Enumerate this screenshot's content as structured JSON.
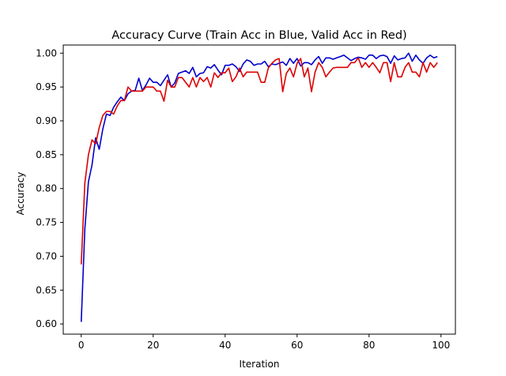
{
  "chart_data": {
    "type": "line",
    "title": "Accuracy Curve (Train Acc in Blue, Valid Acc in Red)",
    "xlabel": "Iteration",
    "ylabel": "Accuracy",
    "xlim": [
      -5,
      104
    ],
    "ylim": [
      0.585,
      1.012
    ],
    "grid": false,
    "legend": "none",
    "xticks": [
      0,
      20,
      40,
      60,
      80,
      100
    ],
    "xtick_labels": [
      "0",
      "20",
      "40",
      "60",
      "80",
      "100"
    ],
    "yticks": [
      0.6,
      0.65,
      0.7,
      0.75,
      0.8,
      0.85,
      0.9,
      0.95,
      1.0
    ],
    "ytick_labels": [
      "0.60",
      "0.65",
      "0.70",
      "0.75",
      "0.80",
      "0.85",
      "0.90",
      "0.95",
      "1.00"
    ],
    "x": [
      0,
      1,
      2,
      3,
      4,
      5,
      6,
      7,
      8,
      9,
      10,
      11,
      12,
      13,
      14,
      15,
      16,
      17,
      18,
      19,
      20,
      21,
      22,
      23,
      24,
      25,
      26,
      27,
      28,
      29,
      30,
      31,
      32,
      33,
      34,
      35,
      36,
      37,
      38,
      39,
      40,
      41,
      42,
      43,
      44,
      45,
      46,
      47,
      48,
      49,
      50,
      51,
      52,
      53,
      54,
      55,
      56,
      57,
      58,
      59,
      60,
      61,
      62,
      63,
      64,
      65,
      66,
      67,
      68,
      69,
      70,
      71,
      72,
      73,
      74,
      75,
      76,
      77,
      78,
      79,
      80,
      81,
      82,
      83,
      84,
      85,
      86,
      87,
      88,
      89,
      90,
      91,
      92,
      93,
      94,
      95,
      96,
      97,
      98,
      99
    ],
    "series": [
      {
        "color": "#0000cc",
        "values": [
          0.603,
          0.74,
          0.81,
          0.835,
          0.875,
          0.858,
          0.888,
          0.91,
          0.908,
          0.92,
          0.928,
          0.935,
          0.93,
          0.94,
          0.944,
          0.945,
          0.963,
          0.945,
          0.953,
          0.963,
          0.957,
          0.957,
          0.952,
          0.96,
          0.968,
          0.95,
          0.956,
          0.97,
          0.972,
          0.974,
          0.97,
          0.979,
          0.965,
          0.97,
          0.971,
          0.98,
          0.978,
          0.983,
          0.975,
          0.968,
          0.982,
          0.982,
          0.984,
          0.98,
          0.973,
          0.984,
          0.99,
          0.988,
          0.982,
          0.984,
          0.984,
          0.988,
          0.98,
          0.984,
          0.983,
          0.985,
          0.987,
          0.982,
          0.992,
          0.985,
          0.992,
          0.981,
          0.986,
          0.986,
          0.983,
          0.99,
          0.995,
          0.985,
          0.993,
          0.993,
          0.991,
          0.993,
          0.995,
          0.997,
          0.993,
          0.989,
          0.992,
          0.994,
          0.993,
          0.991,
          0.997,
          0.997,
          0.992,
          0.996,
          0.997,
          0.995,
          0.985,
          0.996,
          0.99,
          0.992,
          0.993,
          1.0,
          0.988,
          0.997,
          0.99,
          0.985,
          0.993,
          0.997,
          0.993,
          0.995
        ]
      },
      {
        "color": "#dd0000",
        "values": [
          0.688,
          0.808,
          0.85,
          0.872,
          0.866,
          0.89,
          0.908,
          0.914,
          0.914,
          0.91,
          0.922,
          0.93,
          0.93,
          0.95,
          0.944,
          0.944,
          0.944,
          0.944,
          0.95,
          0.95,
          0.95,
          0.944,
          0.944,
          0.929,
          0.96,
          0.95,
          0.95,
          0.964,
          0.964,
          0.957,
          0.95,
          0.964,
          0.95,
          0.964,
          0.958,
          0.964,
          0.95,
          0.971,
          0.964,
          0.971,
          0.971,
          0.978,
          0.958,
          0.965,
          0.978,
          0.965,
          0.972,
          0.972,
          0.972,
          0.972,
          0.957,
          0.957,
          0.978,
          0.985,
          0.99,
          0.992,
          0.943,
          0.97,
          0.978,
          0.965,
          0.985,
          0.992,
          0.965,
          0.978,
          0.943,
          0.972,
          0.986,
          0.979,
          0.965,
          0.972,
          0.978,
          0.979,
          0.979,
          0.979,
          0.979,
          0.986,
          0.986,
          0.993,
          0.979,
          0.986,
          0.979,
          0.986,
          0.979,
          0.971,
          0.986,
          0.986,
          0.958,
          0.986,
          0.965,
          0.965,
          0.979,
          0.986,
          0.972,
          0.972,
          0.965,
          0.986,
          0.972,
          0.986,
          0.979,
          0.986
        ]
      }
    ]
  }
}
